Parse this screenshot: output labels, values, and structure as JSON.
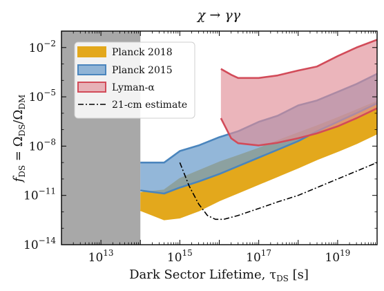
{
  "chart_data": {
    "type": "area",
    "title": "χ → γγ",
    "xlabel": "Dark Sector Lifetime, τ",
    "xlabel_sub": "DS",
    "xlabel_unit": " [s]",
    "ylabel": "f",
    "ylabel_sub": "DS",
    "ylabel_eq": " = Ω",
    "ylabel_sub2": "DS",
    "ylabel_div": "/Ω",
    "ylabel_sub3": "DM",
    "xscale": "log",
    "yscale": "log",
    "xlim": [
      1000000000000.0,
      1e+20
    ],
    "ylim": [
      1e-14,
      0.1
    ],
    "x_ticks": [
      {
        "value": 10000000000000.0,
        "base": "10",
        "exp": "13"
      },
      {
        "value": 1000000000000000.0,
        "base": "10",
        "exp": "15"
      },
      {
        "value": 1e+17,
        "base": "10",
        "exp": "17"
      },
      {
        "value": 1e+19,
        "base": "10",
        "exp": "19"
      }
    ],
    "y_ticks": [
      {
        "value": 0.01,
        "base": "10",
        "exp": "−2"
      },
      {
        "value": 1e-05,
        "base": "10",
        "exp": "−5"
      },
      {
        "value": 1e-08,
        "base": "10",
        "exp": "−8"
      },
      {
        "value": 1e-11,
        "base": "10",
        "exp": "−11"
      },
      {
        "value": 1e-14,
        "base": "10",
        "exp": "−14"
      }
    ],
    "excluded_region": {
      "x": [
        1000000000000.0,
        100000000000000.0
      ],
      "color": "#a8a8a8"
    },
    "legend_position": "top-left",
    "series": [
      {
        "name": "Planck 2018",
        "kind": "band",
        "fill": "#e3a81c",
        "stroke": "#e3a81c",
        "upper": [
          [
            100000000000000.0,
            1.4e-11
          ],
          [
            400000000000000.0,
            2e-11
          ],
          [
            1000000000000000.0,
            1e-10
          ],
          [
            3000000000000000.0,
            3e-10
          ],
          [
            1e+16,
            1e-09
          ],
          [
            3e+16,
            2.5e-09
          ],
          [
            1e+17,
            7e-09
          ],
          [
            3e+17,
            2e-08
          ],
          [
            1e+18,
            6e-08
          ],
          [
            3e+18,
            1.6e-07
          ],
          [
            1e+19,
            5e-07
          ],
          [
            3e+19,
            1.5e-06
          ],
          [
            1e+20,
            5e-06
          ]
        ],
        "lower": [
          [
            100000000000000.0,
            1.3e-12
          ],
          [
            400000000000000.0,
            3.5e-13
          ],
          [
            1000000000000000.0,
            4.5e-13
          ],
          [
            3000000000000000.0,
            1.2e-12
          ],
          [
            1e+16,
            5e-12
          ],
          [
            3e+16,
            1.5e-11
          ],
          [
            1e+17,
            5e-11
          ],
          [
            3e+17,
            1.5e-10
          ],
          [
            1e+18,
            5e-10
          ],
          [
            3e+18,
            1.6e-09
          ],
          [
            1e+19,
            5e-09
          ],
          [
            3e+19,
            1.5e-08
          ],
          [
            1e+20,
            6e-08
          ]
        ]
      },
      {
        "name": "Planck 2015",
        "kind": "band",
        "fill": "#6f9fcc",
        "stroke": "#4a85bd",
        "upper": [
          [
            100000000000000.0,
            1e-09
          ],
          [
            400000000000000.0,
            1e-09
          ],
          [
            1000000000000000.0,
            5e-09
          ],
          [
            3000000000000000.0,
            1.1e-08
          ],
          [
            1e+16,
            3.5e-08
          ],
          [
            3e+16,
            8e-08
          ],
          [
            1e+17,
            3e-07
          ],
          [
            3e+17,
            7e-07
          ],
          [
            1e+18,
            3e-06
          ],
          [
            3e+18,
            6e-06
          ],
          [
            1e+19,
            2e-05
          ],
          [
            3e+19,
            6e-05
          ],
          [
            1e+20,
            0.00025
          ]
        ],
        "lower": [
          [
            100000000000000.0,
            2e-11
          ],
          [
            400000000000000.0,
            1.3e-11
          ],
          [
            1000000000000000.0,
            3e-11
          ],
          [
            3000000000000000.0,
            7e-11
          ],
          [
            1e+16,
            2e-10
          ],
          [
            3e+16,
            6e-10
          ],
          [
            1e+17,
            2e-09
          ],
          [
            3e+17,
            6e-09
          ],
          [
            1e+18,
            2e-08
          ],
          [
            3e+18,
            8e-08
          ],
          [
            1e+19,
            3e-07
          ],
          [
            3e+19,
            1e-06
          ],
          [
            1e+20,
            4e-06
          ]
        ]
      },
      {
        "name": "Lyman-α",
        "kind": "band",
        "fill": "#e08e96",
        "stroke": "#d24b59",
        "upper": [
          [
            1.1e+16,
            0.0005
          ],
          [
            2e+16,
            0.00022
          ],
          [
            3e+16,
            0.00014
          ],
          [
            1e+17,
            0.00014
          ],
          [
            3e+17,
            0.0002
          ],
          [
            1e+18,
            0.0004
          ],
          [
            3e+18,
            0.0007
          ],
          [
            1e+19,
            0.003
          ],
          [
            3e+19,
            0.01
          ],
          [
            1e+20,
            0.03
          ]
        ],
        "lower": [
          [
            1.1e+16,
            5e-07
          ],
          [
            2e+16,
            3e-08
          ],
          [
            3e+16,
            1.5e-08
          ],
          [
            1e+17,
            1.1e-08
          ],
          [
            3e+17,
            1.6e-08
          ],
          [
            1e+18,
            3e-08
          ],
          [
            3e+18,
            6e-08
          ],
          [
            1e+19,
            1.6e-07
          ],
          [
            3e+19,
            5e-07
          ],
          [
            1e+20,
            2e-06
          ]
        ]
      },
      {
        "name": "21-cm estimate",
        "kind": "line",
        "stroke": "#000000",
        "dash": "8 3 2 3",
        "points": [
          [
            1000000000000000.0,
            1e-09
          ],
          [
            1700000000000000.0,
            4e-11
          ],
          [
            3000000000000000.0,
            3e-12
          ],
          [
            5000000000000000.0,
            6e-13
          ],
          [
            8000000000000000.0,
            3.5e-13
          ],
          [
            1.3e+16,
            3.5e-13
          ],
          [
            3e+16,
            6e-13
          ],
          [
            1e+17,
            1.6e-12
          ],
          [
            3e+17,
            4e-12
          ],
          [
            1e+18,
            1e-11
          ],
          [
            3e+18,
            3e-11
          ],
          [
            1e+19,
            1e-10
          ],
          [
            3e+19,
            3e-10
          ],
          [
            1e+20,
            1e-09
          ]
        ]
      }
    ]
  }
}
